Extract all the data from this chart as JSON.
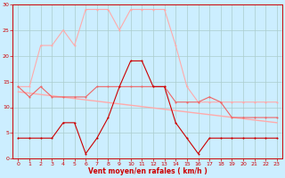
{
  "x": [
    0,
    1,
    2,
    3,
    4,
    5,
    6,
    7,
    8,
    9,
    10,
    11,
    12,
    13,
    14,
    15,
    16,
    17,
    18,
    19,
    20,
    21,
    22,
    23
  ],
  "wind_avg": [
    4,
    4,
    4,
    4,
    7,
    7,
    1,
    4,
    8,
    14,
    19,
    19,
    14,
    14,
    7,
    4,
    1,
    4,
    4,
    4,
    4,
    4,
    4,
    4
  ],
  "wind_gust": [
    14,
    12,
    14,
    12,
    12,
    12,
    12,
    14,
    14,
    14,
    14,
    14,
    14,
    14,
    11,
    11,
    11,
    12,
    11,
    8,
    8,
    8,
    8,
    8
  ],
  "wind_max": [
    14,
    14,
    22,
    22,
    25,
    22,
    29,
    29,
    29,
    25,
    29,
    29,
    29,
    29,
    22,
    14,
    11,
    11,
    11,
    11,
    11,
    11,
    11,
    11
  ],
  "trend_x": [
    0,
    23
  ],
  "trend_y": [
    13,
    7
  ],
  "bg_color": "#cceeff",
  "grid_color": "#aacccc",
  "line_avg_color": "#cc0000",
  "line_gust_color": "#ee6666",
  "line_max_color": "#ffaaaa",
  "trend_color": "#ffaaaa",
  "xlabel": "Vent moyen/en rafales ( km/h )",
  "xlim": [
    -0.5,
    23.5
  ],
  "ylim": [
    0,
    30
  ],
  "yticks": [
    0,
    5,
    10,
    15,
    20,
    25,
    30
  ],
  "xticks": [
    0,
    1,
    2,
    3,
    4,
    5,
    6,
    7,
    8,
    9,
    10,
    11,
    12,
    13,
    14,
    15,
    16,
    17,
    18,
    19,
    20,
    21,
    22,
    23
  ]
}
